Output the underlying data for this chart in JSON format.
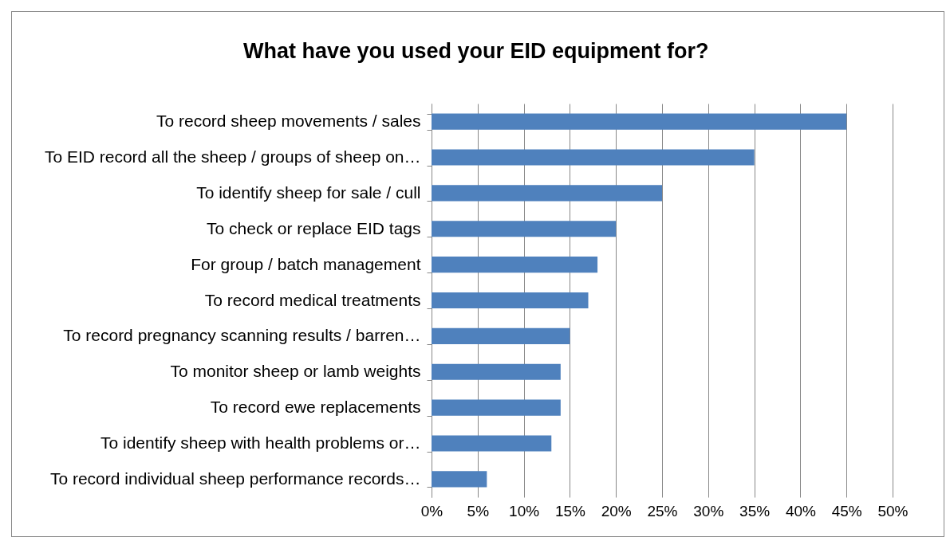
{
  "chart_data": {
    "type": "bar",
    "orientation": "horizontal",
    "title": "What have you used your EID equipment for?",
    "categories": [
      "To record sheep movements / sales",
      "To EID record all the sheep / groups of sheep on…",
      "To identify sheep for sale / cull",
      "To check or replace EID tags",
      "For group / batch management",
      "To record medical treatments",
      "To record pregnancy scanning results / barren…",
      "To monitor sheep or lamb weights",
      "To record ewe replacements",
      "To identify sheep with health problems or…",
      "To record individual sheep performance records…"
    ],
    "values": [
      45,
      35,
      25,
      20,
      18,
      17,
      15,
      14,
      14,
      13,
      6
    ],
    "color": "#4f81bd",
    "xlim": [
      0,
      50
    ],
    "xticks": [
      {
        "value": 0,
        "label": "0%"
      },
      {
        "value": 5,
        "label": "5%"
      },
      {
        "value": 10,
        "label": "10%"
      },
      {
        "value": 15,
        "label": "15%"
      },
      {
        "value": 20,
        "label": "20%"
      },
      {
        "value": 25,
        "label": "25%"
      },
      {
        "value": 30,
        "label": "30%"
      },
      {
        "value": 35,
        "label": "35%"
      },
      {
        "value": 40,
        "label": "40%"
      },
      {
        "value": 45,
        "label": "45%"
      },
      {
        "value": 50,
        "label": "50%"
      }
    ],
    "grid": "x"
  }
}
